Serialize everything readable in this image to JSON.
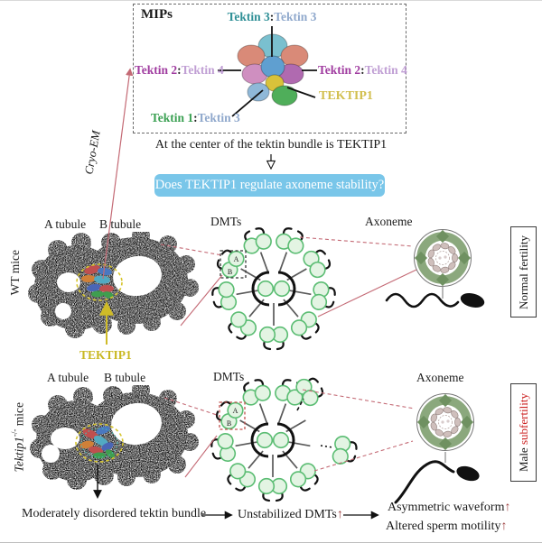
{
  "colors": {
    "tektin1": "#3aa052",
    "tektin2": "#a03ca0",
    "tektin3_dark": "#2e8f96",
    "tektin3_light": "#8fa8cc",
    "tektin4": "#c09fd4",
    "tektip1_mips": "#d2bf4e",
    "tektip1_label": "#c9b821",
    "question_box_bg": "#79c6e9",
    "red_up_arrow": "#9b3a3a",
    "subfertility_red": "#cc2222",
    "connector_pink": "#c46a75"
  },
  "mips": {
    "title": "MIPs",
    "colon": ":",
    "top_a": "Tektin 3",
    "top_b": "Tektin 3",
    "left_a": "Tektin 2",
    "left_b": "Tektin 4",
    "right_a": "Tektin 2",
    "right_b": "Tektin 4",
    "bottom_a": "Tektin 1",
    "bottom_b": "Tektin 3",
    "tektip1": "TEKTIP1",
    "caption": "At the center of the tektin bundle is TEKTIP1"
  },
  "question": "Does TEKTIP1 regulate axoneme stability?",
  "cryoem": "Cryo-EM",
  "wt": {
    "mice": "WT mice",
    "a_tubule": "A tubule",
    "b_tubule": "B tubule",
    "tektip1": "TEKTIP1",
    "dmts": "DMTs",
    "axoneme": "Axoneme",
    "fertility": "Normal fertility",
    "ab": {
      "a": "A",
      "b": "B"
    }
  },
  "ko": {
    "mice_gene": "Tektip1",
    "mice_sup": "-/-",
    "mice_rest": " mice",
    "a_tubule": "A tubule",
    "b_tubule": "B tubule",
    "dmts": "DMTs",
    "axoneme": "Axoneme",
    "fertility_a": "Male ",
    "fertility_b": "subfertility",
    "ab": {
      "a": "A",
      "b": "B"
    },
    "disordered": "Moderately disordered tektin bundle",
    "unstabilized": "Unstabilized DMTs",
    "waveform": "Asymmetric waveform",
    "motility": "Altered sperm motility",
    "up_arrow": "↑"
  }
}
